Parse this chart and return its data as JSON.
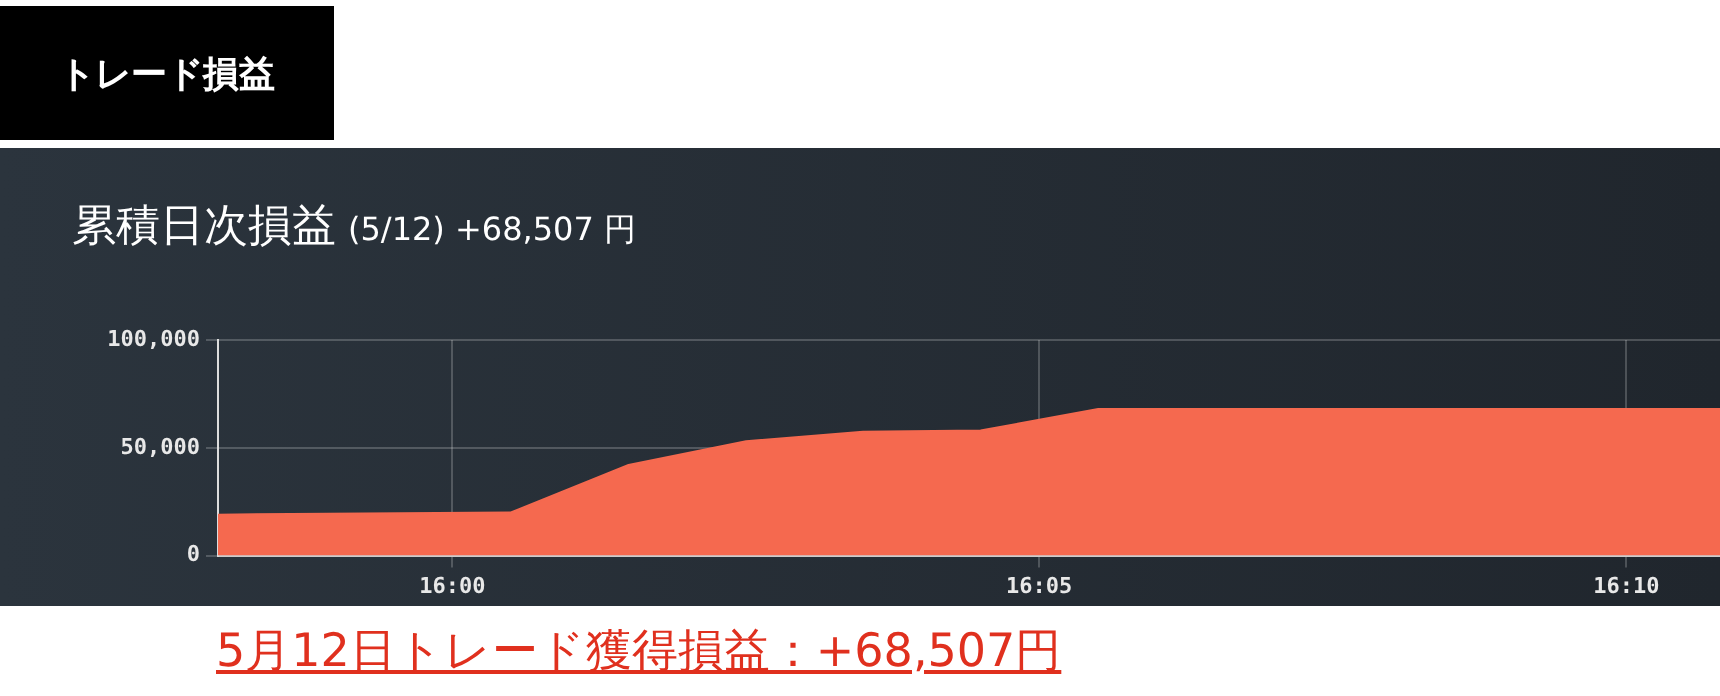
{
  "chart_data": {
    "type": "area",
    "title": "累積日次損益",
    "subtitle": "(5/12) +68,507 円",
    "annotations": [
      "トレード損益",
      "5月12日トレード獲得損益：+68,507円"
    ],
    "x": [
      15.9667,
      16.0083,
      16.025,
      16.0417,
      16.0583,
      16.075,
      16.0917,
      16.18
    ],
    "series": [
      {
        "color": "#f5694f",
        "values": [
          19000,
          20000,
          42000,
          53000,
          57500,
          58000,
          68000,
          68000
        ]
      }
    ],
    "xlim": [
      15.9667,
      16.18
    ],
    "xticks": [
      {
        "value": 16,
        "label": "16:00"
      },
      {
        "value": 16.0833,
        "label": "16:05"
      },
      {
        "value": 16.1667,
        "label": "16:10"
      }
    ],
    "ylim": [
      0,
      100000
    ],
    "yticks": [
      {
        "value": 0,
        "label": "0"
      },
      {
        "value": 50000,
        "label": "50,000"
      },
      {
        "value": 100000,
        "label": "100,000"
      }
    ],
    "grid": true,
    "legend": false,
    "marker": "none",
    "line_style": "solid"
  }
}
